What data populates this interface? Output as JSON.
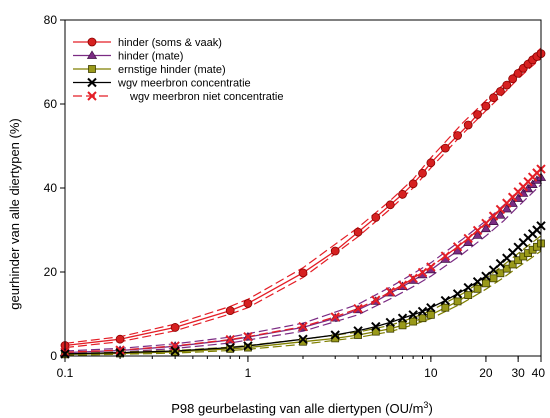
{
  "chart_data": {
    "type": "line",
    "xscale": "log",
    "xlim": [
      0.1,
      40
    ],
    "ylim": [
      0,
      80
    ],
    "x_ticks": [
      {
        "value": 0.1,
        "label": "0.1"
      },
      {
        "value": 1,
        "label": "1"
      },
      {
        "value": 10,
        "label": "10"
      },
      {
        "value": 20,
        "label": "20"
      },
      {
        "value": 30,
        "label": "30"
      },
      {
        "value": 40,
        "label": "40"
      }
    ],
    "y_ticks": [
      {
        "value": 0,
        "label": "0"
      },
      {
        "value": 20,
        "label": "20"
      },
      {
        "value": 40,
        "label": "40"
      },
      {
        "value": 60,
        "label": "60"
      },
      {
        "value": 80,
        "label": "80"
      }
    ],
    "xlabel": "P98 geurbelasting van alle diertypen (OU/m",
    "xlabel_sup": "3",
    "xlabel_end": ")",
    "ylabel": "geurhinder van alle diertypen (%)",
    "grid": false,
    "legend_position": "top-left",
    "legend": [
      {
        "label": "hinder (soms & vaak)",
        "color": "#e41e26",
        "marker": "circle",
        "dashed": false
      },
      {
        "label": "hinder (mate)",
        "color": "#7b2b83",
        "marker": "triangle",
        "dashed": false
      },
      {
        "label": "ernstige hinder (mate)",
        "color": "#7f7f00",
        "marker": "square",
        "dashed": false
      },
      {
        "label": "wgv meerbron concentratie",
        "color": "#000000",
        "marker": "x",
        "dashed": false
      },
      {
        "label": "wgv meerbron niet concentratie",
        "color": "#e41e26",
        "marker": "x",
        "dashed": true
      }
    ],
    "series": [
      {
        "name": "hinder (soms & vaak)",
        "color": "#e41e26",
        "marker": "circle",
        "fill": "#d62020",
        "x": [
          0.1,
          0.2,
          0.4,
          0.8,
          1,
          2,
          3,
          4,
          5,
          6,
          7,
          8,
          9,
          10,
          12,
          14,
          16,
          18,
          20,
          22,
          24,
          26,
          28,
          30,
          32,
          34,
          36,
          38,
          40
        ],
        "y": [
          2.5,
          4,
          6.8,
          10.8,
          12.5,
          19.8,
          25,
          29.5,
          33,
          36,
          38.5,
          41,
          43.5,
          46,
          49.5,
          52.5,
          55,
          57.5,
          59.5,
          61.5,
          63,
          64.5,
          66,
          67.3,
          68.5,
          69.5,
          70.5,
          71.3,
          72
        ]
      },
      {
        "name": "hinder (mate)",
        "color": "#7b2b83",
        "marker": "triangle",
        "fill": "#7b2b83",
        "x": [
          0.1,
          0.2,
          0.4,
          0.8,
          1,
          2,
          3,
          4,
          5,
          6,
          7,
          8,
          9,
          10,
          12,
          14,
          16,
          18,
          20,
          22,
          24,
          26,
          28,
          30,
          32,
          34,
          36,
          38,
          40
        ],
        "y": [
          0.8,
          1.3,
          2.3,
          3.8,
          4.5,
          6.8,
          9,
          11,
          13,
          15,
          16.5,
          18,
          19.3,
          20.5,
          23,
          25,
          27,
          28.7,
          30.3,
          32,
          33.5,
          35,
          36.3,
          37.5,
          38.7,
          39.8,
          40.8,
          41.8,
          42.5
        ]
      },
      {
        "name": "ernstige hinder (mate)",
        "color": "#7f7f00",
        "marker": "square",
        "fill": "#9a9a1a",
        "x": [
          0.1,
          0.2,
          0.4,
          0.8,
          1,
          2,
          3,
          4,
          5,
          6,
          7,
          8,
          9,
          10,
          12,
          14,
          16,
          18,
          20,
          22,
          24,
          26,
          28,
          30,
          32,
          34,
          36,
          38,
          40
        ],
        "y": [
          0.4,
          0.6,
          1,
          1.7,
          2,
          3.4,
          4.2,
          5,
          5.8,
          6.5,
          7.3,
          8.2,
          9,
          9.8,
          11.5,
          13,
          14.5,
          16,
          17.3,
          18.5,
          19.7,
          20.8,
          21.8,
          22.8,
          23.7,
          24.5,
          25.3,
          26,
          26.8
        ]
      },
      {
        "name": "wgv meerbron concentratie",
        "color": "#000000",
        "marker": "x",
        "fill": "none",
        "x": [
          0.1,
          0.2,
          0.4,
          0.8,
          1,
          2,
          3,
          4,
          5,
          6,
          7,
          8,
          9,
          10,
          12,
          14,
          16,
          18,
          20,
          22,
          24,
          26,
          28,
          30,
          32,
          34,
          36,
          38,
          40
        ],
        "y": [
          0.5,
          0.8,
          1.2,
          2,
          2.4,
          4,
          5,
          6,
          7,
          8,
          9,
          9.8,
          10.6,
          11.5,
          13.2,
          14.8,
          16.3,
          17.7,
          19,
          20.5,
          22,
          23.3,
          24.6,
          25.9,
          27,
          28.1,
          29.1,
          30,
          31
        ]
      },
      {
        "name": "wgv meerbron niet concentratie",
        "color": "#e41e26",
        "marker": "x",
        "fill": "none",
        "dashed": true,
        "x": [
          0.1,
          0.2,
          0.4,
          0.8,
          1,
          2,
          3,
          4,
          5,
          6,
          7,
          8,
          9,
          10,
          12,
          14,
          16,
          18,
          20,
          22,
          24,
          26,
          28,
          30,
          32,
          34,
          36,
          38,
          40
        ],
        "y": [
          0.9,
          1.4,
          2.4,
          3.9,
          4.6,
          7,
          9.3,
          11.3,
          13.3,
          15.3,
          16.9,
          18.5,
          19.9,
          21.2,
          23.8,
          26,
          28,
          29.9,
          31.6,
          33.3,
          34.9,
          36.4,
          37.8,
          39.1,
          40.3,
          41.5,
          42.6,
          43.6,
          44.5
        ]
      }
    ],
    "bands": [
      {
        "color": "#e41e26",
        "x": [
          0.1,
          0.2,
          0.4,
          0.8,
          1,
          2,
          4,
          6,
          8,
          10,
          15,
          20,
          25,
          30,
          35,
          40
        ],
        "lower": [
          2.0,
          3.4,
          6.0,
          10.0,
          11.5,
          18.7,
          28.4,
          35.0,
          40.0,
          44.8,
          53.0,
          58.4,
          62.5,
          66.0,
          68.7,
          70.8
        ],
        "upper": [
          3.0,
          4.6,
          7.6,
          11.8,
          13.5,
          21.0,
          30.6,
          37.0,
          42.1,
          47.2,
          55.6,
          60.8,
          64.7,
          68.2,
          71.0,
          73.3
        ]
      },
      {
        "color": "#7b2b83",
        "x": [
          0.1,
          0.2,
          0.4,
          0.8,
          1,
          2,
          4,
          6,
          8,
          10,
          15,
          20,
          25,
          30,
          35,
          40
        ],
        "lower": [
          0.5,
          0.9,
          1.8,
          3.1,
          3.8,
          5.9,
          9.8,
          13.6,
          16.5,
          19.0,
          24.4,
          28.6,
          32.2,
          35.6,
          38.4,
          40.8
        ],
        "upper": [
          1.2,
          1.8,
          2.9,
          4.5,
          5.3,
          7.8,
          12.3,
          16.4,
          19.6,
          22.2,
          27.9,
          32.2,
          35.9,
          39.3,
          42.2,
          44.6
        ]
      },
      {
        "color": "#7f7f00",
        "x": [
          0.1,
          0.2,
          0.4,
          0.8,
          1,
          2,
          4,
          6,
          8,
          10,
          15,
          20,
          25,
          30,
          35,
          40
        ],
        "lower": [
          0.2,
          0.4,
          0.7,
          1.3,
          1.6,
          2.8,
          4.4,
          5.8,
          7.4,
          8.9,
          12.7,
          15.9,
          18.7,
          21.2,
          23.2,
          25.0
        ],
        "upper": [
          0.6,
          0.9,
          1.3,
          2.1,
          2.5,
          4.0,
          5.7,
          7.3,
          9.1,
          10.8,
          14.9,
          18.5,
          21.7,
          24.4,
          26.7,
          28.6
        ]
      }
    ]
  }
}
